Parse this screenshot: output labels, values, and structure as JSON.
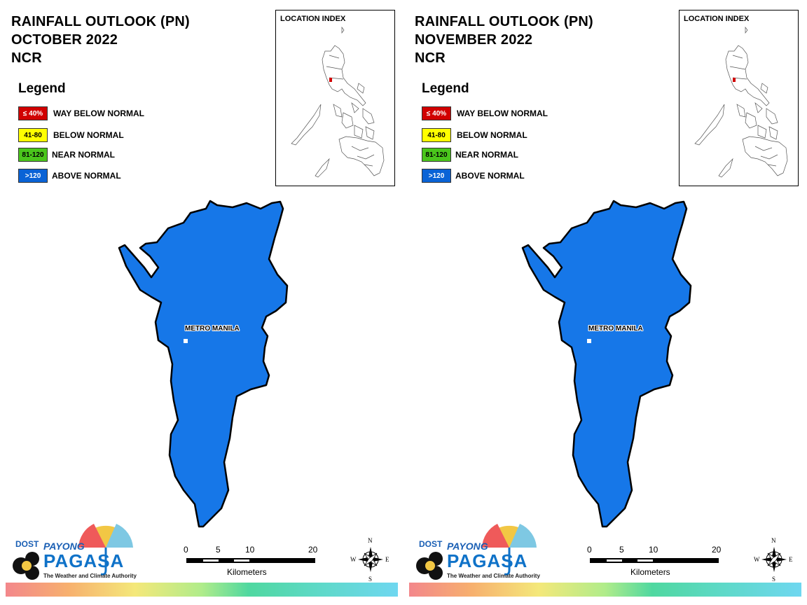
{
  "colors": {
    "way_below": "#d10000",
    "below": "#ffff00",
    "near": "#4ac61c",
    "above": "#0a63d6",
    "region_fill": "#1677e8"
  },
  "legend_title": "Legend",
  "legend_items": [
    {
      "code": "≤ 40%",
      "label": "WAY BELOW NORMAL",
      "color": "#d10000",
      "text_color": "#ffffff"
    },
    {
      "code": "41-80",
      "label": "BELOW NORMAL",
      "color": "#ffff00",
      "text_color": "#000000"
    },
    {
      "code": "81-120",
      "label": "NEAR NORMAL",
      "color": "#4ac61c",
      "text_color": "#000000"
    },
    {
      "code": ">120",
      "label": "ABOVE NORMAL",
      "color": "#0a63d6",
      "text_color": "#ffffff"
    }
  ],
  "location_index_title": "LOCATION INDEX",
  "scale": {
    "ticks": [
      "0",
      "5",
      "10",
      "20"
    ],
    "unit": "Kilometers"
  },
  "compass": {
    "n": "N",
    "e": "E",
    "s": "S",
    "w": "W"
  },
  "logo": {
    "dost": "DOST",
    "payong": "PAYONG",
    "pagasa": "PAGASA",
    "tagline": "The Weather and Climate Authority"
  },
  "maps": [
    {
      "title_lines": [
        "RAINFALL OUTLOOK (PN)",
        "OCTOBER 2022",
        "NCR"
      ],
      "region_label": "METRO MANILA",
      "outlook_category": "ABOVE NORMAL"
    },
    {
      "title_lines": [
        "RAINFALL OUTLOOK (PN)",
        "NOVEMBER 2022",
        "NCR"
      ],
      "region_label": "METRO MANILA",
      "outlook_category": "ABOVE NORMAL"
    }
  ]
}
